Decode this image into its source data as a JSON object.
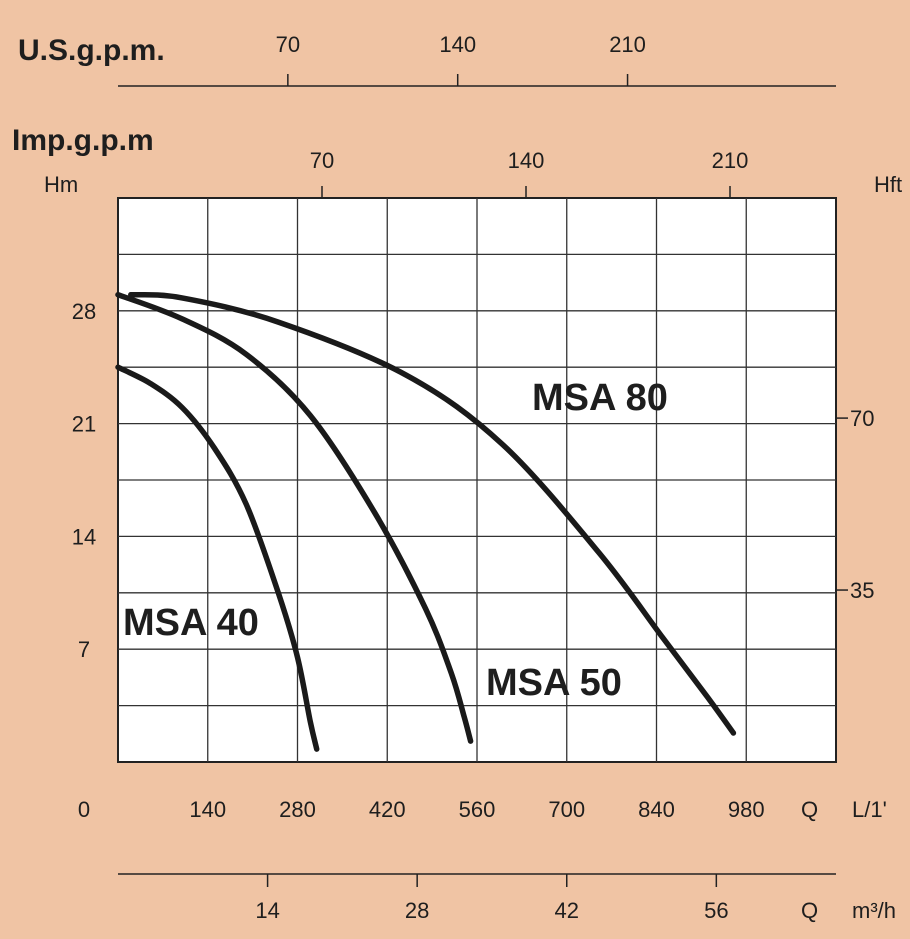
{
  "chart_data": {
    "type": "line",
    "title": "",
    "axes": {
      "left": {
        "label": "Hm",
        "ticks": [
          "0",
          "7",
          "14",
          "21",
          "28"
        ],
        "range": [
          0,
          35
        ]
      },
      "right": {
        "label": "Hft",
        "ticks": [
          "35",
          "70"
        ]
      },
      "bottom_primary": {
        "label": "L/1'",
        "q_label": "Q",
        "ticks": [
          "140",
          "280",
          "420",
          "560",
          "700",
          "840",
          "980"
        ],
        "range": [
          0,
          1120
        ]
      },
      "bottom_secondary": {
        "label": "m³/h",
        "q_label": "Q",
        "ticks": [
          "14",
          "28",
          "42",
          "56"
        ]
      },
      "top_us": {
        "label": "U.S.g.p.m.",
        "ticks": [
          "70",
          "140",
          "210"
        ]
      },
      "top_imp": {
        "label": "Imp.g.p.m",
        "ticks": [
          "70",
          "140",
          "210"
        ]
      }
    },
    "grid": true,
    "series": [
      {
        "name": "MSA 40",
        "x": [
          0,
          50,
          100,
          150,
          200,
          250,
          280,
          300,
          310
        ],
        "y": [
          24.5,
          23.5,
          22.0,
          19.5,
          16.0,
          10.5,
          6.5,
          2.5,
          0.8
        ]
      },
      {
        "name": "MSA 50",
        "x": [
          0,
          100,
          200,
          300,
          400,
          480,
          520,
          540,
          550
        ],
        "y": [
          29.0,
          27.5,
          25.3,
          21.5,
          15.5,
          9.5,
          5.5,
          2.8,
          1.3
        ]
      },
      {
        "name": "MSA 80",
        "x": [
          20,
          100,
          250,
          450,
          600,
          750,
          850,
          920,
          960
        ],
        "y": [
          29.0,
          28.8,
          27.3,
          24.0,
          19.7,
          13.0,
          7.7,
          4.0,
          1.8
        ]
      }
    ]
  }
}
